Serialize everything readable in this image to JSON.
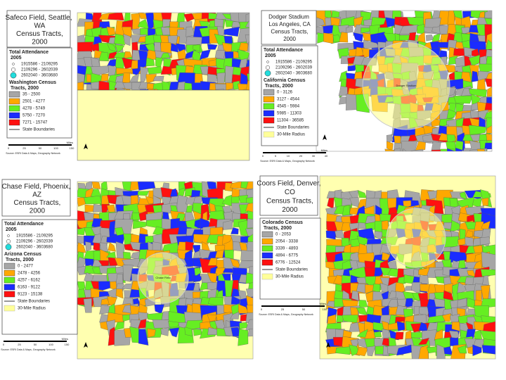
{
  "panels": [
    {
      "title": "Safeco Field, Seattle, WA Census Tracts, 2000",
      "attendance_title": "Total Attendance 2005",
      "attendance": [
        "1915586 - 2109295",
        "2109296 - 2602039",
        "2602040 - 3603680"
      ],
      "tracts_title": "Washington Census Tracts, 2000",
      "tracts": [
        "35 - 2500",
        "2501 - 4277",
        "4278 - 5749",
        "5750 - 7270",
        "7271 - 15747"
      ],
      "extras": [
        "State Boundaries"
      ],
      "scale_label": "Miles",
      "scale_ticks": [
        "0",
        "25",
        "50",
        "100",
        "150"
      ],
      "source": "Source: ESRI Data & Maps, Geography Network"
    },
    {
      "title": "Dodger Stadium Los Angeles, CA Census Tracts, 2000",
      "attendance_title": "Total Attendance 2005",
      "attendance": [
        "1915586 - 2109295",
        "2109296 - 2602039",
        "2602040 - 3603680"
      ],
      "tracts_title": "California Census Tracts, 2000",
      "tracts": [
        "0 - 3126",
        "3127 - 4544",
        "4545 - 5984",
        "5985 - 11303",
        "11304 - 36585"
      ],
      "extras": [
        "State Boundaries",
        "30-Mile Radius"
      ],
      "scale_label": "Miles",
      "scale_ticks": [
        "0",
        "5",
        "10",
        "20",
        "30",
        "40"
      ],
      "source": "Source: ESRI Data & Maps, Geography Network",
      "stadium": "Dodger Stadium"
    },
    {
      "title": "Chase Field, Phoenix, AZ Census Tracts, 2000",
      "attendance_title": "Total Attendance 2005",
      "attendance": [
        "1915586 - 2109295",
        "2109296 - 2602039",
        "2602040 - 3603680"
      ],
      "tracts_title": "Arizona Census Tracts, 2000",
      "tracts": [
        "0 - 2477",
        "2478 - 4256",
        "4257 - 6162",
        "6163 - 9122",
        "9123 - 15138"
      ],
      "extras": [
        "State Boundaries",
        "30-Mile Radius"
      ],
      "scale_label": "Miles",
      "scale_ticks": [
        "0",
        "25",
        "50",
        "100",
        "150"
      ],
      "source": "Source: ESRI Data & Maps, Geography Network",
      "stadium": "Chase Field"
    },
    {
      "title": "Coors Field, Denver, CO Census Tracts, 2000",
      "tracts_title": "Colorado Census Tracts, 2000",
      "tracts": [
        "0 - 2053",
        "2054 - 3338",
        "3339 - 4893",
        "4894 - 6775",
        "6776 - 12524"
      ],
      "extras": [
        "State Boundaries",
        "30-Mile Radius"
      ],
      "scale_label": "Miles",
      "scale_ticks": [
        "0",
        "25",
        "50",
        "100"
      ],
      "source": "Source: ESRI Data & Maps, Geography Network"
    }
  ]
}
